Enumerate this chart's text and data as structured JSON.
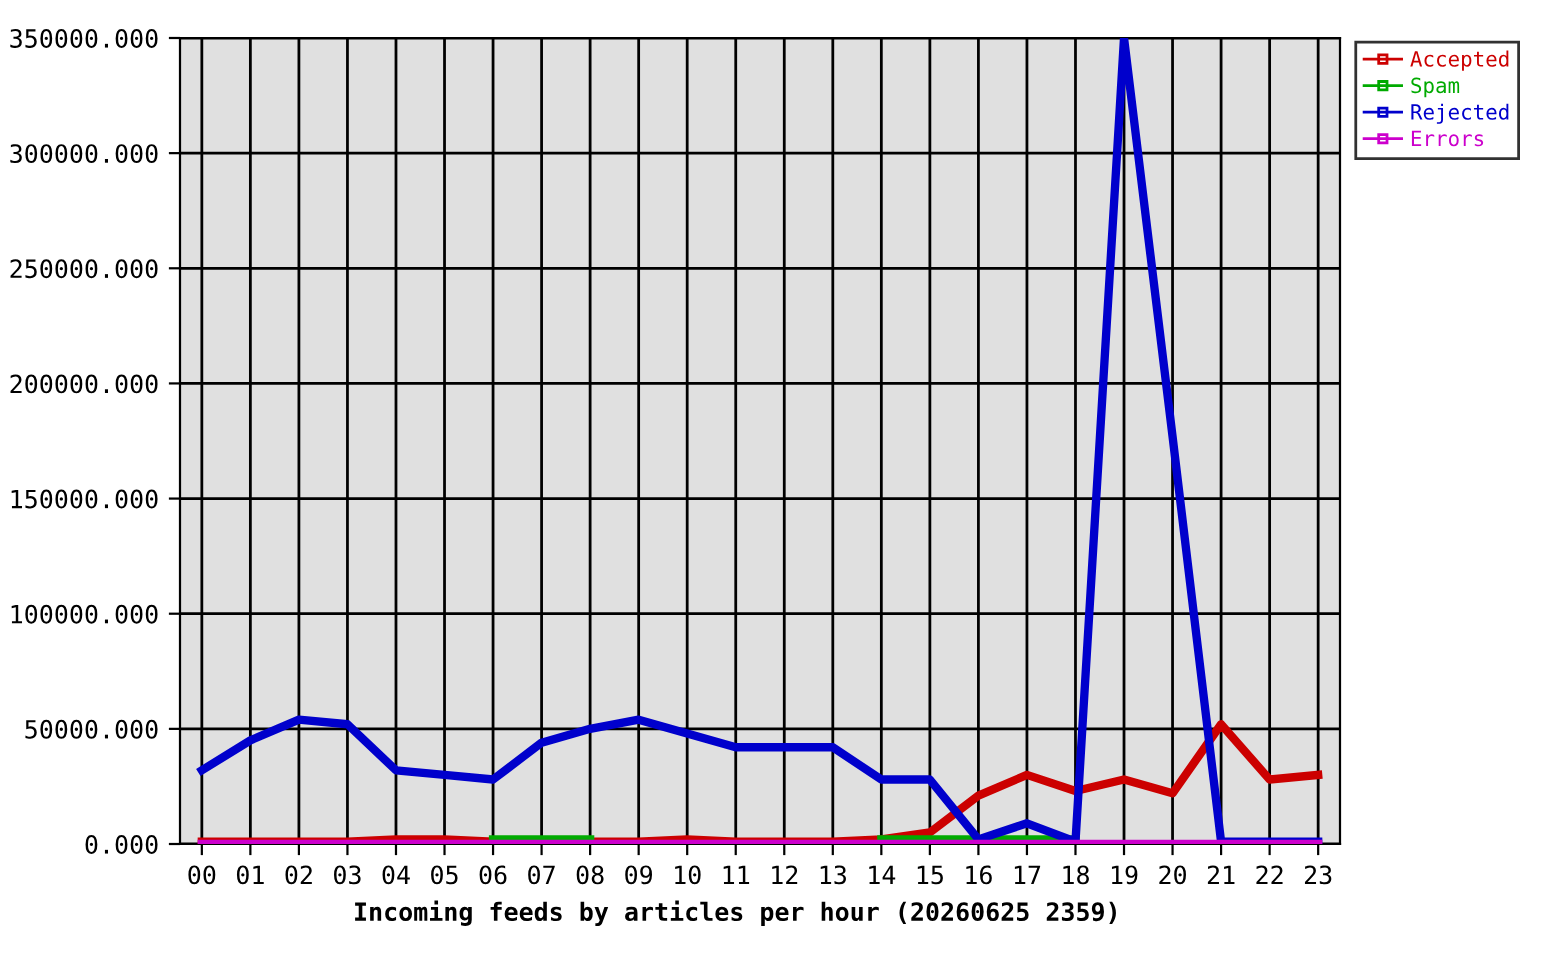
{
  "chart_data": {
    "type": "line",
    "xlabel": "Incoming feeds by articles per hour (20260625 2359)",
    "categories": [
      "00",
      "01",
      "02",
      "03",
      "04",
      "05",
      "06",
      "07",
      "08",
      "09",
      "10",
      "11",
      "12",
      "13",
      "14",
      "15",
      "16",
      "17",
      "18",
      "19",
      "20",
      "21",
      "22",
      "23"
    ],
    "series": [
      {
        "name": "Accepted",
        "color": "#cc0000",
        "values": [
          1000,
          1000,
          1000,
          1000,
          2000,
          2000,
          1000,
          1000,
          1000,
          1000,
          2000,
          1000,
          1000,
          1000,
          2000,
          5000,
          21000,
          30000,
          23000,
          28000,
          22000,
          52000,
          28000,
          30000
        ]
      },
      {
        "name": "Spam",
        "color": "#00aa00",
        "values": [
          null,
          null,
          null,
          null,
          null,
          null,
          2000,
          2000,
          2000,
          null,
          null,
          null,
          null,
          null,
          2000,
          2000,
          2000,
          2000,
          2000,
          null,
          null,
          null,
          null,
          null
        ]
      },
      {
        "name": "Rejected",
        "color": "#0000cc",
        "values": [
          32000,
          45000,
          54000,
          52000,
          32000,
          30000,
          28000,
          44000,
          50000,
          54000,
          48000,
          42000,
          42000,
          42000,
          28000,
          28000,
          2000,
          9000,
          1000,
          350000,
          177000,
          1000,
          1000,
          1000
        ]
      },
      {
        "name": "Errors",
        "color": "#cc00cc",
        "values": [
          0,
          0,
          0,
          0,
          0,
          0,
          0,
          0,
          0,
          0,
          0,
          0,
          0,
          0,
          0,
          0,
          0,
          0,
          0,
          0,
          0,
          0,
          0,
          0
        ]
      }
    ],
    "ylim": [
      0,
      350000
    ],
    "yticks": [
      {
        "value": 0,
        "label": "0.000"
      },
      {
        "value": 50000,
        "label": "50000.000"
      },
      {
        "value": 100000,
        "label": "100000.000"
      },
      {
        "value": 150000,
        "label": "150000.000"
      },
      {
        "value": 200000,
        "label": "200000.000"
      },
      {
        "value": 250000,
        "label": "250000.000"
      },
      {
        "value": 300000,
        "label": "300000.000"
      },
      {
        "value": 350000,
        "label": "350000.000"
      }
    ],
    "grid": true,
    "legend": "top right",
    "line_style": "solid",
    "marker": "none"
  }
}
